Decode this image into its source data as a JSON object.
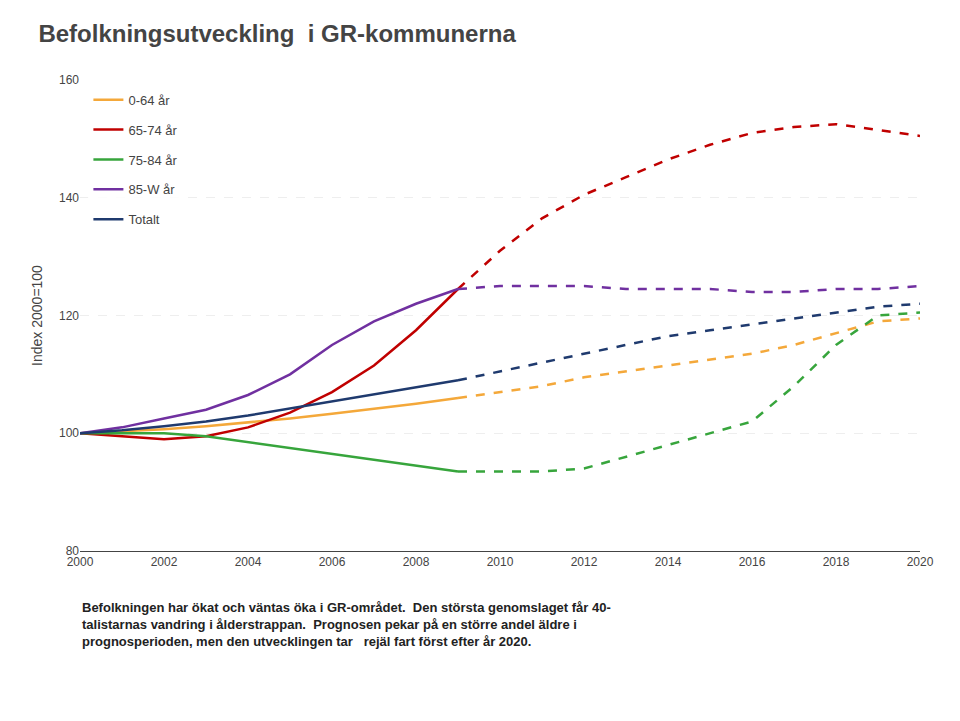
{
  "chart_data": {
    "type": "line",
    "title": "Befolkningsutveckling  i GR-kommunerna",
    "ylabel": "Index 2000=100",
    "annotations": [
      "Befolkningen har ökat och väntas öka i GR-området.  Den största genomslaget får 40-",
      "talistarnas vandring i ålderstrappan.  Prognosen pekar på en större andel äldre i",
      "prognosperioden, men den utvecklingen tar   rejäl fart först efter år 2020."
    ],
    "x": [
      2000,
      2001,
      2002,
      2003,
      2004,
      2005,
      2006,
      2007,
      2008,
      2009,
      2010,
      2011,
      2012,
      2013,
      2014,
      2015,
      2016,
      2017,
      2018,
      2019,
      2020
    ],
    "series": [
      {
        "name": "0-64 år",
        "color": "#F4A83A",
        "line_style": "solid",
        "values": [
          100,
          100.3,
          100.7,
          101.2,
          101.8,
          102.5,
          103.3,
          104.1,
          105.0,
          106.0,
          null,
          null,
          null,
          null,
          null,
          null,
          null,
          null,
          null,
          null,
          null
        ]
      },
      {
        "name": "0-64 år",
        "color": "#F4A83A",
        "line_style": "dashed",
        "values": [
          null,
          null,
          null,
          null,
          null,
          null,
          null,
          null,
          null,
          106.0,
          107.0,
          108.0,
          109.5,
          110.5,
          111.5,
          112.5,
          113.5,
          115.0,
          117.0,
          119.0,
          119.5
        ]
      },
      {
        "name": "65-74 år",
        "color": "#C00000",
        "line_style": "solid",
        "values": [
          100,
          99.5,
          99.0,
          99.5,
          101.0,
          103.5,
          107.0,
          111.5,
          117.5,
          124.5,
          null,
          null,
          null,
          null,
          null,
          null,
          null,
          null,
          null,
          null,
          null
        ]
      },
      {
        "name": "65-74 år",
        "color": "#C00000",
        "line_style": "dashed",
        "values": [
          null,
          null,
          null,
          null,
          null,
          null,
          null,
          null,
          null,
          124.5,
          131.0,
          136.5,
          140.5,
          143.5,
          146.5,
          149.0,
          151.0,
          152.0,
          152.5,
          151.5,
          150.5
        ]
      },
      {
        "name": "75-84 år",
        "color": "#37A53C",
        "line_style": "solid",
        "values": [
          100,
          100.0,
          100.0,
          99.5,
          98.5,
          97.5,
          96.5,
          95.5,
          94.5,
          93.5,
          null,
          null,
          null,
          null,
          null,
          null,
          null,
          null,
          null,
          null,
          null
        ]
      },
      {
        "name": "75-84 år",
        "color": "#37A53C",
        "line_style": "dashed",
        "values": [
          null,
          null,
          null,
          null,
          null,
          null,
          null,
          null,
          null,
          93.5,
          93.5,
          93.5,
          94.0,
          96.0,
          98.0,
          100.0,
          102.0,
          108.0,
          115.0,
          120.0,
          120.5
        ]
      },
      {
        "name": "85-W år",
        "color": "#7030A0",
        "line_style": "solid",
        "values": [
          100,
          101.0,
          102.5,
          104.0,
          106.5,
          110.0,
          115.0,
          119.0,
          122.0,
          124.5,
          null,
          null,
          null,
          null,
          null,
          null,
          null,
          null,
          null,
          null,
          null
        ]
      },
      {
        "name": "85-W år",
        "color": "#7030A0",
        "line_style": "dashed",
        "values": [
          null,
          null,
          null,
          null,
          null,
          null,
          null,
          null,
          null,
          124.5,
          125.0,
          125.0,
          125.0,
          124.5,
          124.5,
          124.5,
          124.0,
          124.0,
          124.5,
          124.5,
          125.0
        ]
      },
      {
        "name": "Totalt",
        "color": "#1F3A6E",
        "line_style": "solid",
        "values": [
          100,
          100.5,
          101.2,
          102.0,
          103.0,
          104.2,
          105.3,
          106.5,
          107.8,
          109.0,
          null,
          null,
          null,
          null,
          null,
          null,
          null,
          null,
          null,
          null,
          null
        ]
      },
      {
        "name": "Totalt",
        "color": "#1F3A6E",
        "line_style": "dashed",
        "values": [
          null,
          null,
          null,
          null,
          null,
          null,
          null,
          null,
          null,
          109.0,
          110.5,
          112.0,
          113.5,
          115.0,
          116.5,
          117.5,
          118.5,
          119.5,
          120.5,
          121.5,
          122.0
        ]
      }
    ],
    "xlim": [
      2000,
      2020
    ],
    "xticks": [
      2000,
      2002,
      2004,
      2006,
      2008,
      2010,
      2012,
      2014,
      2016,
      2018,
      2020
    ],
    "ylim": [
      80,
      160
    ],
    "yticks": [
      80,
      100,
      120,
      140,
      160
    ],
    "grid": true,
    "legend": "upper left"
  }
}
